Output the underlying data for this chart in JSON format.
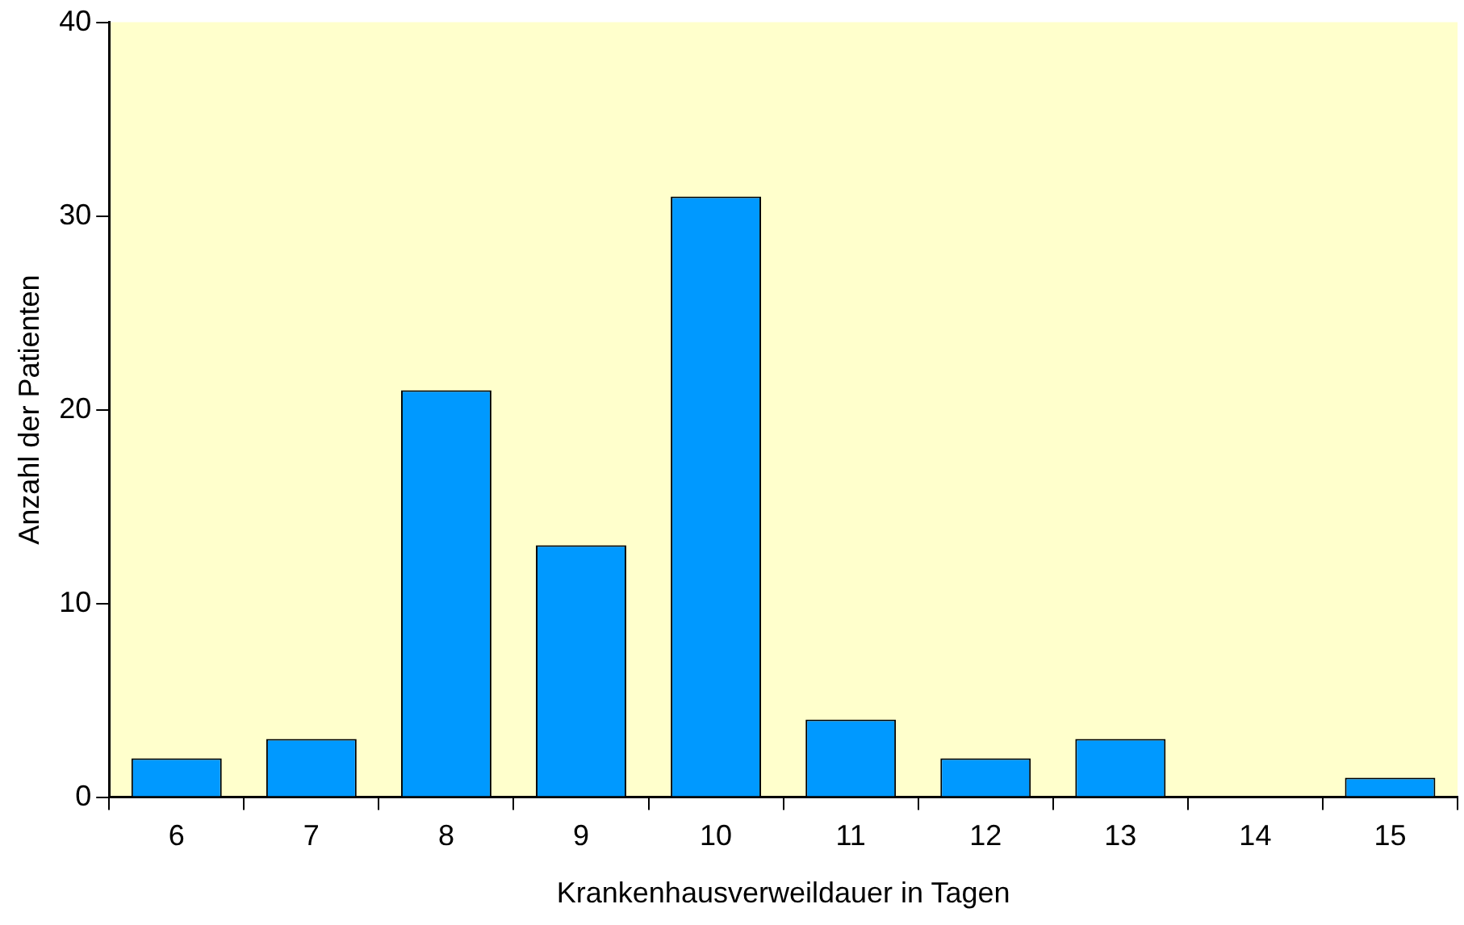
{
  "chart_data": {
    "type": "bar",
    "xlabel": "Krankenhausverweildauer in Tagen",
    "ylabel": "Anzahl der Patienten",
    "categories": [
      "6",
      "7",
      "8",
      "9",
      "10",
      "11",
      "12",
      "13",
      "14",
      "15"
    ],
    "values": [
      2,
      3,
      21,
      13,
      31,
      4,
      2,
      3,
      0,
      1
    ],
    "color": "#0099ff",
    "ylim": [
      0,
      40
    ],
    "yticks": [
      0,
      10,
      20,
      30,
      40
    ],
    "grid": false,
    "legend": false
  }
}
